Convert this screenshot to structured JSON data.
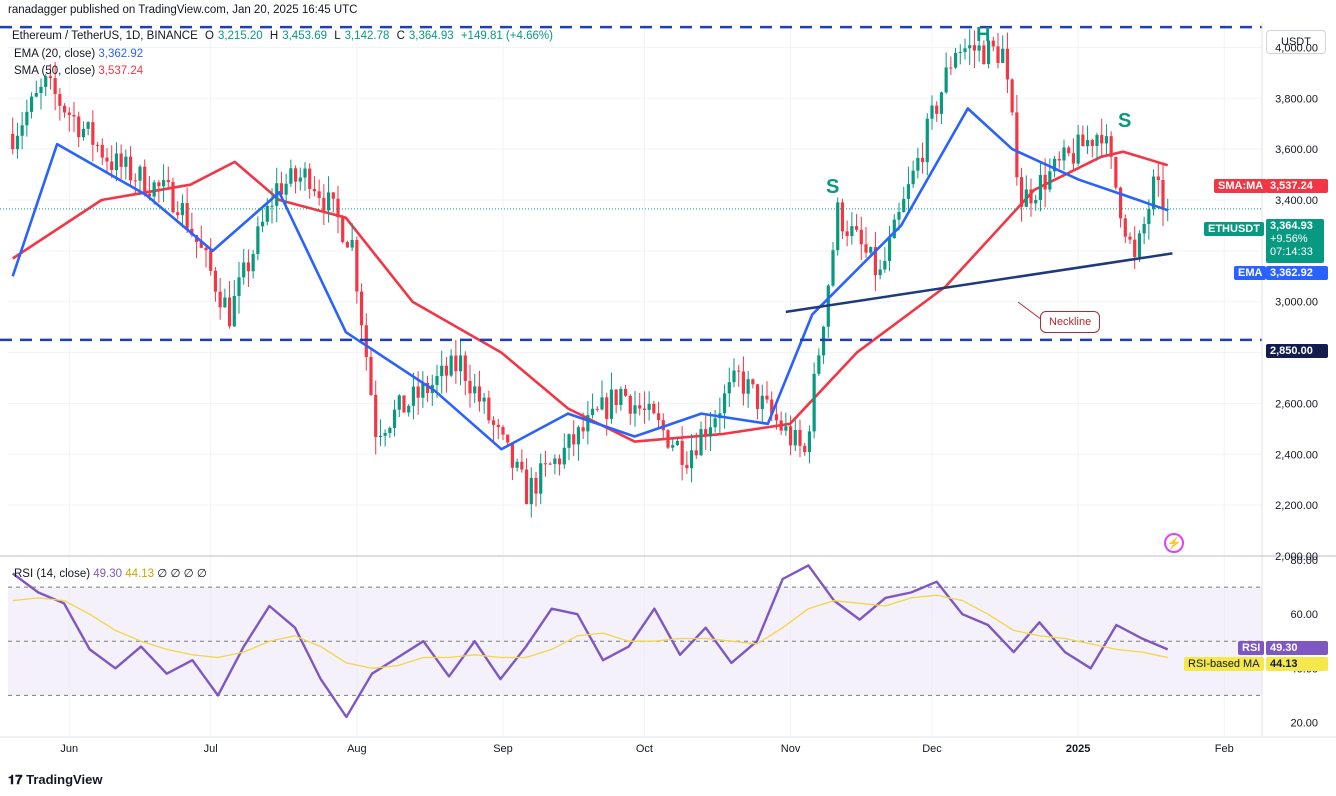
{
  "published": "ranadagger published on TradingView.com, Jan 20, 2025 16:45 UTC",
  "header": {
    "symbol": "Ethereum / TetherUS, 1D, BINANCE",
    "o_label": "O",
    "o": "3,215.20",
    "h_label": "H",
    "h": "3,453.69",
    "l_label": "L",
    "l": "3,142.78",
    "c_label": "C",
    "c": "3,364.93",
    "change": "+149.81 (+4.66%)",
    "ema_label": "EMA (20, close)",
    "ema_value": "3,362.92",
    "sma_label": "SMA (50, close)",
    "sma_value": "3,537.24",
    "rsi_label": "RSI (14, close)",
    "rsi_value": "49.30",
    "rsi_ma_value": "44.13",
    "rsi_extra": "∅ ∅ ∅ ∅"
  },
  "currency": "USDT",
  "annotations": {
    "head": "H",
    "left_shoulder": "S",
    "right_shoulder": "S",
    "neckline": "Neckline"
  },
  "price_tags": {
    "sma_name": "SMA:MA",
    "sma_value": "3,537.24",
    "last_name": "ETHUSDT",
    "last_value": "3,364.93",
    "last_change": "+9.56%",
    "last_countdown": "07:14:33",
    "ema_name": "EMA",
    "ema_value": "3,362.92",
    "support_value": "2,850.00",
    "rsi_name": "RSI",
    "rsi_value": "49.30",
    "rsi_ma_name": "RSI-based MA",
    "rsi_ma_value": "44.13"
  },
  "footer_logo": "TradingView",
  "colors": {
    "up": "#089981",
    "down": "#f23645",
    "ema": "#2962ff",
    "sma": "#f23645",
    "rsi": "#7e57c2",
    "rsi_ma": "#f5d547",
    "level": "#1e3fb5",
    "neckline": "#1e3a78"
  },
  "chart_data": [
    {
      "type": "candlestick",
      "title": "Ethereum / TetherUS, 1D, BINANCE",
      "x_ticks": [
        "Jun",
        "Jul",
        "Aug",
        "Sep",
        "Oct",
        "Nov",
        "Dec",
        "2025",
        "Feb"
      ],
      "y_ticks": [
        2000,
        2200,
        2400,
        2600,
        2800,
        3000,
        3200,
        3400,
        3600,
        3800,
        4000
      ],
      "ylim": [
        2000,
        4100
      ],
      "x_dates": [
        "2024-05-19",
        "2025-02-09"
      ],
      "key_points": [
        {
          "date": "2024-05-20",
          "close": 3660
        },
        {
          "date": "2024-05-27",
          "close": 3850
        },
        {
          "date": "2024-06-10",
          "close": 3550
        },
        {
          "date": "2024-06-24",
          "close": 3400
        },
        {
          "date": "2024-07-05",
          "close": 2950
        },
        {
          "date": "2024-07-15",
          "close": 3450
        },
        {
          "date": "2024-07-22",
          "close": 3500
        },
        {
          "date": "2024-07-31",
          "close": 3230
        },
        {
          "date": "2024-08-05",
          "close": 2500
        },
        {
          "date": "2024-08-23",
          "close": 2760
        },
        {
          "date": "2024-09-06",
          "close": 2250
        },
        {
          "date": "2024-09-26",
          "close": 2650
        },
        {
          "date": "2024-10-10",
          "close": 2400
        },
        {
          "date": "2024-10-21",
          "close": 2700
        },
        {
          "date": "2024-11-04",
          "close": 2400
        },
        {
          "date": "2024-11-11",
          "close": 3350
        },
        {
          "date": "2024-11-20",
          "close": 3100
        },
        {
          "date": "2024-12-06",
          "close": 4000
        },
        {
          "date": "2024-12-16",
          "close": 3980
        },
        {
          "date": "2024-12-20",
          "close": 3400
        },
        {
          "date": "2025-01-06",
          "close": 3680
        },
        {
          "date": "2025-01-13",
          "close": 3150
        },
        {
          "date": "2025-01-17",
          "close": 3450
        },
        {
          "date": "2025-01-20",
          "close": 3364.93
        }
      ],
      "ema20": [
        [
          0,
          3100
        ],
        [
          10,
          3620
        ],
        [
          30,
          3420
        ],
        [
          45,
          3200
        ],
        [
          60,
          3430
        ],
        [
          75,
          2880
        ],
        [
          95,
          2650
        ],
        [
          110,
          2420
        ],
        [
          125,
          2560
        ],
        [
          140,
          2470
        ],
        [
          155,
          2560
        ],
        [
          170,
          2520
        ],
        [
          180,
          2950
        ],
        [
          200,
          3300
        ],
        [
          215,
          3760
        ],
        [
          225,
          3600
        ],
        [
          240,
          3480
        ],
        [
          250,
          3420
        ],
        [
          260,
          3360
        ]
      ],
      "sma50": [
        [
          0,
          3170
        ],
        [
          20,
          3400
        ],
        [
          40,
          3460
        ],
        [
          50,
          3550
        ],
        [
          60,
          3400
        ],
        [
          75,
          3330
        ],
        [
          90,
          3000
        ],
        [
          110,
          2800
        ],
        [
          125,
          2580
        ],
        [
          140,
          2450
        ],
        [
          160,
          2480
        ],
        [
          175,
          2520
        ],
        [
          190,
          2800
        ],
        [
          210,
          3060
        ],
        [
          230,
          3440
        ],
        [
          245,
          3570
        ],
        [
          250,
          3590
        ],
        [
          260,
          3537
        ]
      ],
      "levels": {
        "resistance": 4080,
        "support": 2850,
        "last_close": 3364.93
      },
      "neckline": {
        "from": {
          "date": "2024-10-31",
          "price": 2960
        },
        "to": {
          "date": "2025-01-21",
          "price": 3190
        }
      }
    },
    {
      "type": "line",
      "title": "RSI (14, close)",
      "y_ticks": [
        20,
        40,
        60,
        80
      ],
      "ylim": [
        15,
        80
      ],
      "bands": [
        30,
        50,
        70
      ],
      "series": [
        {
          "name": "RSI",
          "values": [
            75,
            68,
            64,
            47,
            40,
            48,
            38,
            43,
            30,
            48,
            63,
            55,
            36,
            22,
            38,
            44,
            50,
            37,
            50,
            36,
            48,
            62,
            60,
            43,
            48,
            62,
            45,
            55,
            42,
            50,
            73,
            78,
            65,
            58,
            66,
            68,
            72,
            60,
            56,
            46,
            57,
            46,
            40,
            56,
            51,
            47
          ]
        },
        {
          "name": "RSI-based MA",
          "values": [
            65,
            66,
            65,
            60,
            54,
            50,
            47,
            45,
            44,
            46,
            50,
            52,
            48,
            42,
            40,
            41,
            44,
            44,
            45,
            44,
            44,
            47,
            52,
            53,
            50,
            50,
            51,
            51,
            50,
            49,
            55,
            62,
            65,
            64,
            63,
            66,
            67,
            65,
            60,
            54,
            52,
            51,
            49,
            47,
            46,
            44
          ]
        }
      ]
    }
  ]
}
